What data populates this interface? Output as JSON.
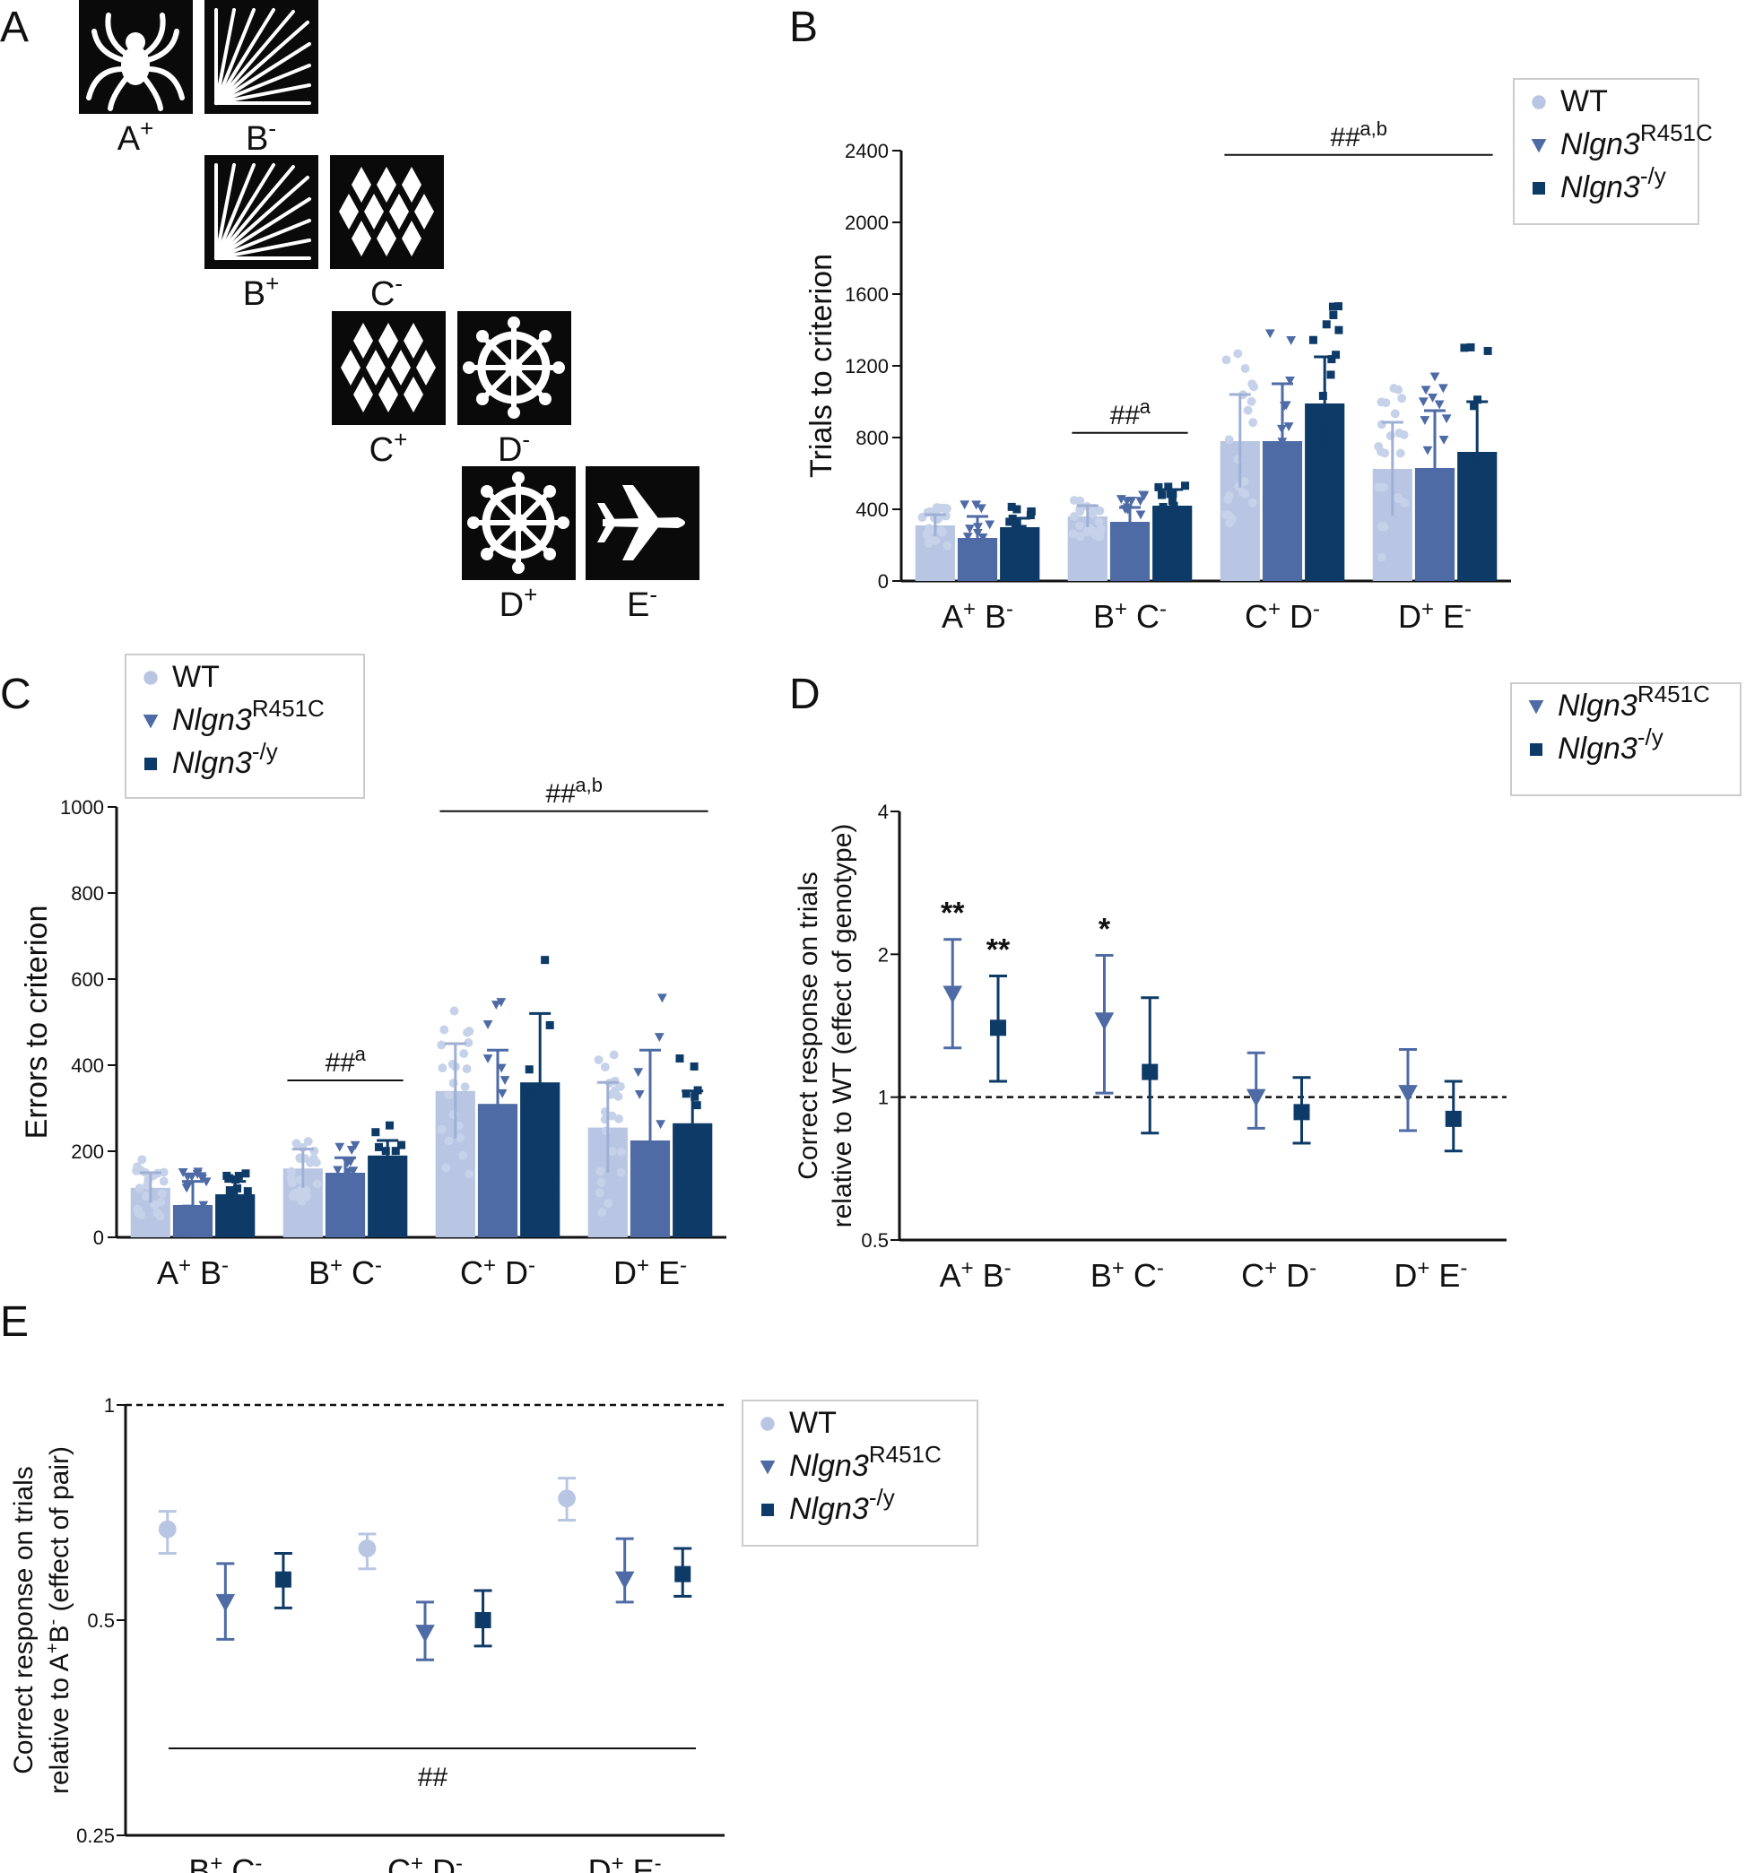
{
  "panels": {
    "A": "A",
    "B": "B",
    "C": "C",
    "D": "D",
    "E": "E"
  },
  "colors": {
    "wt": "#b8c6e3",
    "r451c": "#4e6ba6",
    "ko": "#0d3a66",
    "dots_wt": "#c6d2ea"
  },
  "legend": {
    "wt": "WT",
    "r451c_base": "Nlgn3",
    "r451c_sup": "R451C",
    "ko_base": "Nlgn3",
    "ko_sup": "-/y"
  },
  "stimuli": [
    {
      "key": "A",
      "icon": "spider-icon",
      "sign": "+"
    },
    {
      "key": "B",
      "icon": "rays-icon",
      "sign": "-"
    },
    {
      "key": "B",
      "icon": "rays-icon",
      "sign": "+"
    },
    {
      "key": "C",
      "icon": "diamonds-icon",
      "sign": "-"
    },
    {
      "key": "C",
      "icon": "diamonds-icon",
      "sign": "+"
    },
    {
      "key": "D",
      "icon": "wheel-icon",
      "sign": "-"
    },
    {
      "key": "D",
      "icon": "wheel-icon",
      "sign": "+"
    },
    {
      "key": "E",
      "icon": "airplane-icon",
      "sign": "-"
    }
  ],
  "pairs": [
    {
      "a": "A",
      "as": "+",
      "b": "B",
      "bs": "-"
    },
    {
      "a": "B",
      "as": "+",
      "b": "C",
      "bs": "-"
    },
    {
      "a": "C",
      "as": "+",
      "b": "D",
      "bs": "-"
    },
    {
      "a": "D",
      "as": "+",
      "b": "E",
      "bs": "-"
    }
  ],
  "chart_data": [
    {
      "panel": "B",
      "type": "bar",
      "ylabel": "Trials to criterion",
      "ylim": [
        0,
        2400
      ],
      "yticks": [
        0,
        400,
        800,
        1200,
        1600,
        2000,
        2400
      ],
      "categories": [
        "A+ B-",
        "B+ C-",
        "C+ D-",
        "D+ E-"
      ],
      "series": [
        {
          "name": "WT",
          "values": [
            310,
            360,
            780,
            625
          ],
          "err": [
            60,
            60,
            260,
            260
          ]
        },
        {
          "name": "Nlgn3 R451C",
          "values": [
            240,
            330,
            780,
            630
          ],
          "err": [
            120,
            80,
            320,
            320
          ]
        },
        {
          "name": "Nlgn3 -/y",
          "values": [
            300,
            420,
            990,
            720
          ],
          "err": [
            50,
            90,
            260,
            280
          ]
        }
      ],
      "annotations": [
        {
          "text": "##",
          "sup": "a",
          "from": 1,
          "to": 1
        },
        {
          "text": "##",
          "sup": "a,b",
          "from": 2,
          "to": 3
        }
      ]
    },
    {
      "panel": "C",
      "type": "bar",
      "ylabel": "Errors to criterion",
      "ylim": [
        0,
        1000
      ],
      "yticks": [
        0,
        200,
        400,
        600,
        800,
        1000
      ],
      "categories": [
        "A+ B-",
        "B+ C-",
        "C+ D-",
        "D+ E-"
      ],
      "series": [
        {
          "name": "WT",
          "values": [
            115,
            160,
            340,
            255
          ],
          "err": [
            35,
            45,
            110,
            105
          ]
        },
        {
          "name": "Nlgn3 R451C",
          "values": [
            75,
            150,
            310,
            225
          ],
          "err": [
            55,
            35,
            125,
            210
          ]
        },
        {
          "name": "Nlgn3 -/y",
          "values": [
            100,
            190,
            360,
            265
          ],
          "err": [
            30,
            35,
            160,
            75
          ]
        }
      ],
      "annotations": [
        {
          "text": "##",
          "sup": "a",
          "from": 1,
          "to": 1
        },
        {
          "text": "##",
          "sup": "a,b",
          "from": 2,
          "to": 3
        }
      ]
    },
    {
      "panel": "D",
      "type": "scatter",
      "ylabel": [
        "Correct response on trials",
        "relative to WT (effect of genotype)"
      ],
      "yscale": "log2",
      "ylim": [
        0.5,
        4
      ],
      "yticks": [
        0.5,
        1,
        2,
        4
      ],
      "categories": [
        "A+ B-",
        "B+ C-",
        "C+ D-",
        "D+ E-"
      ],
      "reference_line": 1,
      "series": [
        {
          "name": "Nlgn3 R451C",
          "values": [
            1.65,
            1.45,
            1.0,
            1.02
          ],
          "lo": [
            1.27,
            1.02,
            0.86,
            0.85
          ],
          "hi": [
            2.15,
            1.99,
            1.24,
            1.26
          ]
        },
        {
          "name": "Nlgn3 -/y",
          "values": [
            1.4,
            1.13,
            0.93,
            0.9
          ],
          "lo": [
            1.08,
            0.84,
            0.8,
            0.77
          ],
          "hi": [
            1.8,
            1.62,
            1.1,
            1.08
          ]
        }
      ],
      "significance": [
        {
          "series": 0,
          "category": 0,
          "text": "**"
        },
        {
          "series": 1,
          "category": 0,
          "text": "**"
        },
        {
          "series": 0,
          "category": 1,
          "text": "*"
        }
      ]
    },
    {
      "panel": "E",
      "type": "scatter",
      "ylabel": [
        "Correct response on trials",
        "relative to A",
        "B",
        " (effect of pair)"
      ],
      "yscale": "log2",
      "ylim": [
        0.25,
        1
      ],
      "yticks": [
        0.25,
        0.5,
        1
      ],
      "categories": [
        "B+ C-",
        "C+ D-",
        "D+ E-"
      ],
      "reference_line": 1,
      "series": [
        {
          "name": "WT",
          "values": [
            0.67,
            0.63,
            0.74
          ],
          "lo": [
            0.62,
            0.59,
            0.69
          ],
          "hi": [
            0.71,
            0.66,
            0.79
          ]
        },
        {
          "name": "Nlgn3 R451C",
          "values": [
            0.53,
            0.48,
            0.57
          ],
          "lo": [
            0.47,
            0.44,
            0.53
          ],
          "hi": [
            0.6,
            0.53,
            0.65
          ]
        },
        {
          "name": "Nlgn3 -/y",
          "values": [
            0.57,
            0.5,
            0.58
          ],
          "lo": [
            0.52,
            0.46,
            0.54
          ],
          "hi": [
            0.62,
            0.55,
            0.63
          ]
        }
      ],
      "annotation": "##"
    }
  ]
}
